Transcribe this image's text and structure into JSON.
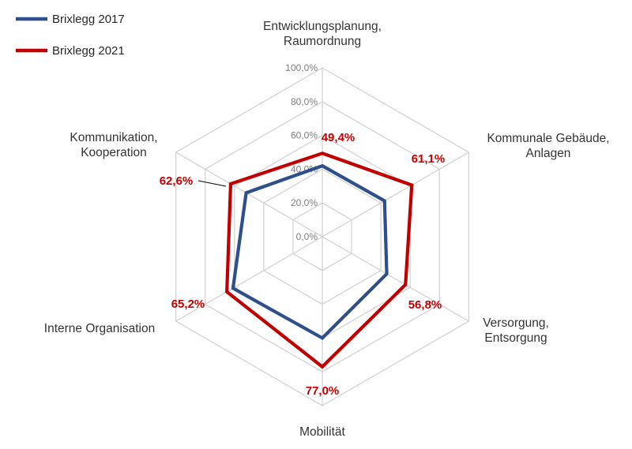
{
  "chart_data": {
    "type": "radar",
    "categories": [
      [
        "Entwicklungsplanung,",
        "Raumordnung"
      ],
      [
        "Kommunale Gebäude,",
        "Anlagen"
      ],
      [
        "Versorgung,",
        "Entsorgung"
      ],
      [
        "Mobilität"
      ],
      [
        "Interne Organisation"
      ],
      [
        "Kommunikation,",
        "Kooperation"
      ]
    ],
    "rmin": 0,
    "rmax": 100,
    "ticks": [
      "0,0%",
      "20,0%",
      "40,0%",
      "60,0%",
      "80,0%",
      "100,0%"
    ],
    "tick_values": [
      0,
      20,
      40,
      60,
      80,
      100
    ],
    "grid": true,
    "legend_position": "top-left",
    "series": [
      {
        "name": "Brixlegg 2017",
        "color": "#2e4f8a",
        "values": [
          42.0,
          42.5,
          44.0,
          60.0,
          61.0,
          52.0
        ],
        "data_labels": null
      },
      {
        "name": "Brixlegg 2021",
        "color": "#c00000",
        "values": [
          49.4,
          61.1,
          56.8,
          77.0,
          65.2,
          62.6
        ],
        "data_labels": [
          "49,4%",
          "61,1%",
          "56,8%",
          "77,0%",
          "65,2%",
          "62,6%"
        ]
      }
    ]
  }
}
